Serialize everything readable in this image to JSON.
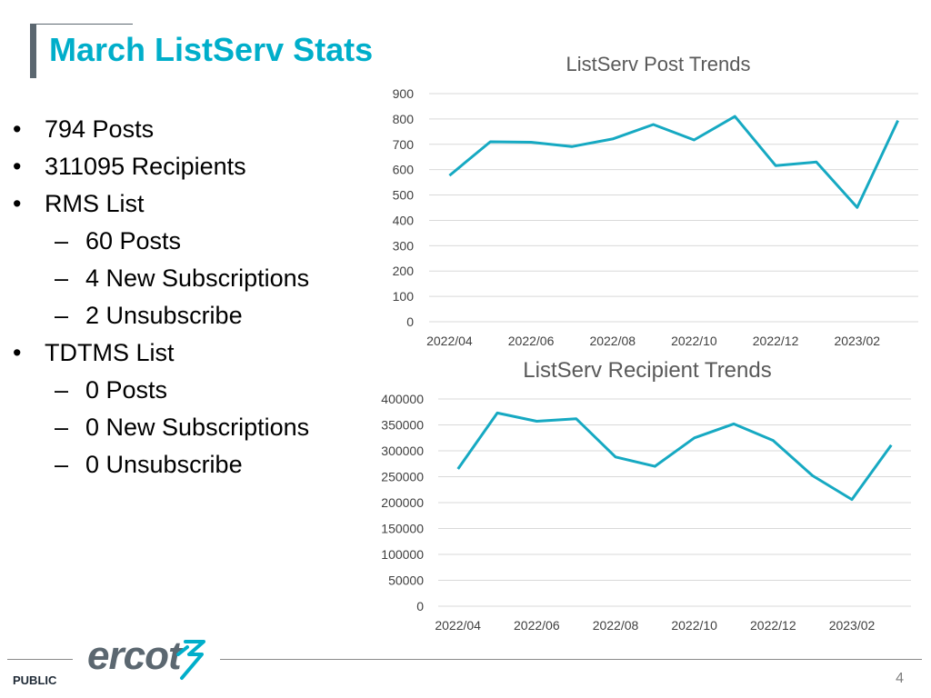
{
  "slide": {
    "title": "March ListServ Stats",
    "footer_label": "PUBLIC",
    "page_number": "4",
    "logo_text": "ercot"
  },
  "bullets": [
    {
      "text": "794 Posts",
      "level": 1
    },
    {
      "text": "311095 Recipients",
      "level": 1
    },
    {
      "text": "RMS List",
      "level": 1
    },
    {
      "text": "60 Posts",
      "level": 2
    },
    {
      "text": "4 New Subscriptions",
      "level": 2
    },
    {
      "text": "2 Unsubscribe",
      "level": 2
    },
    {
      "text": "TDTMS List",
      "level": 1
    },
    {
      "text": "0 Posts",
      "level": 2
    },
    {
      "text": "0 New Subscriptions",
      "level": 2
    },
    {
      "text": "0 Unsubscribe",
      "level": 2
    }
  ],
  "colors": {
    "accent": "#00aeca",
    "line": "#16a9c2",
    "grid": "#d9d9d9",
    "axis_text": "#404040",
    "chart_title": "#595959"
  },
  "chart_data": [
    {
      "type": "line",
      "title": "ListServ Post Trends",
      "xlabel": "",
      "ylabel": "",
      "categories": [
        "2022/04",
        "2022/05",
        "2022/06",
        "2022/07",
        "2022/08",
        "2022/09",
        "2022/10",
        "2022/11",
        "2022/12",
        "2023/01",
        "2023/02",
        "2023/03"
      ],
      "x_tick_labels": [
        "2022/04",
        "",
        "2022/06",
        "",
        "2022/08",
        "",
        "2022/10",
        "",
        "2022/12",
        "",
        "2023/02",
        ""
      ],
      "values": [
        577,
        710,
        708,
        691,
        721,
        778,
        717,
        810,
        616,
        630,
        451,
        794
      ],
      "ylim": [
        0,
        900
      ],
      "yticks": [
        0,
        100,
        200,
        300,
        400,
        500,
        600,
        700,
        800,
        900
      ],
      "grid": true
    },
    {
      "type": "line",
      "title": "ListServ Recipient Trends",
      "xlabel": "",
      "ylabel": "",
      "categories": [
        "2022/04",
        "2022/05",
        "2022/06",
        "2022/07",
        "2022/08",
        "2022/09",
        "2022/10",
        "2022/11",
        "2022/12",
        "2023/01",
        "2023/02",
        "2023/03"
      ],
      "x_tick_labels": [
        "2022/04",
        "",
        "2022/06",
        "",
        "2022/08",
        "",
        "2022/10",
        "",
        "2022/12",
        "",
        "2023/02",
        ""
      ],
      "values": [
        265000,
        373000,
        357000,
        362000,
        288000,
        270000,
        325000,
        352000,
        320000,
        252000,
        206000,
        311095
      ],
      "ylim": [
        0,
        400000
      ],
      "yticks": [
        0,
        50000,
        100000,
        150000,
        200000,
        250000,
        300000,
        350000,
        400000
      ],
      "grid": true
    }
  ]
}
